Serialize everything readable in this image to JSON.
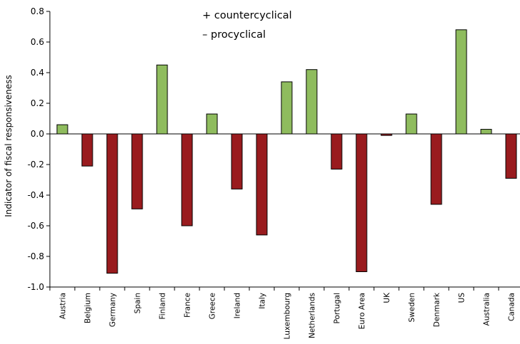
{
  "chart_data": {
    "type": "bar",
    "ylabel": "Indicator of fiscal responsiveness",
    "xlabel": "",
    "ylim": [
      -1.0,
      0.8
    ],
    "yticks": [
      0.8,
      0.6,
      0.4,
      0.2,
      0.0,
      -0.2,
      -0.4,
      -0.6,
      -0.8,
      -1.0
    ],
    "ytick_labels": [
      "0.8",
      "0.6",
      "0.4",
      "0.2",
      "0.0",
      "-0.2",
      "-0.4",
      "-0.6",
      "-0.8",
      "-1.0"
    ],
    "grid": false,
    "legend": {
      "placement": "top-center",
      "entries": [
        "+ countercyclical",
        "– procyclical"
      ]
    },
    "colors": {
      "positive": "#8fbc5e",
      "negative": "#991b1e",
      "edge": "#000000"
    },
    "categories": [
      "Austria",
      "Belgium",
      "Germany",
      "Spain",
      "Finland",
      "France",
      "Greece",
      "Ireland",
      "Italy",
      "Luxembourg",
      "Netherlands",
      "Portugal",
      "Euro Area",
      "UK",
      "Sweden",
      "Denmark",
      "US",
      "Australia",
      "Canada"
    ],
    "values": [
      0.06,
      -0.21,
      -0.91,
      -0.49,
      0.45,
      -0.6,
      0.13,
      -0.36,
      -0.66,
      0.34,
      0.42,
      -0.23,
      -0.9,
      -0.01,
      0.13,
      -0.46,
      0.68,
      0.03,
      -0.29
    ]
  }
}
